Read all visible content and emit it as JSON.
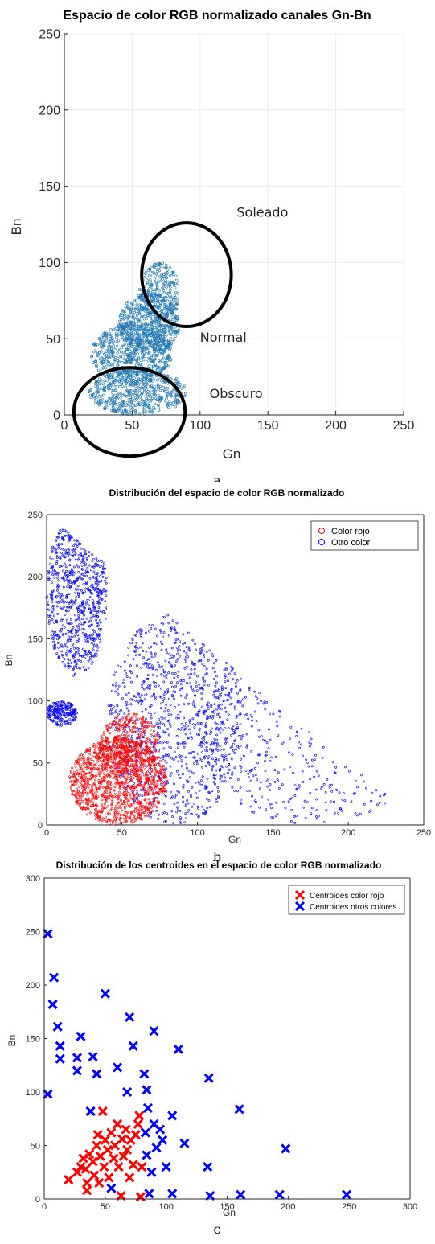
{
  "chart_data": [
    {
      "type": "scatter",
      "title": "Espacio de color RGB normalizado canales Gn-Bn",
      "xlabel": "Gn",
      "ylabel": "Bn",
      "xlim": [
        0,
        250
      ],
      "ylim": [
        0,
        250
      ],
      "x_ticks": [
        "0",
        "50",
        "100",
        "150",
        "200",
        "250"
      ],
      "y_ticks": [
        "0",
        "50",
        "100",
        "150",
        "200",
        "250"
      ],
      "grid": true,
      "color": "#1f77b4",
      "series": [
        {
          "regions": [
            {
              "x": [
                18,
                90
              ],
              "y": [
                0,
                30
              ],
              "weight": 4
            },
            {
              "x": [
                20,
                80
              ],
              "y": [
                20,
                60
              ],
              "weight": 5
            },
            {
              "x": [
                40,
                85
              ],
              "y": [
                40,
                80
              ],
              "weight": 4
            },
            {
              "x": [
                55,
                85
              ],
              "y": [
                60,
                100
              ],
              "weight": 2
            }
          ]
        }
      ],
      "annotations": [
        {
          "text": "Soleado",
          "x": 127,
          "y": 130
        },
        {
          "text": "Normal",
          "x": 100,
          "y": 48
        },
        {
          "text": "Obscuro",
          "x": 107,
          "y": 11
        }
      ],
      "circles": [
        {
          "cx": 90,
          "cy": 92,
          "rx": 33,
          "ry": 34
        },
        {
          "cx": 48,
          "cy": 2,
          "rx": 41,
          "ry": 29
        }
      ],
      "caption": "a"
    },
    {
      "type": "scatter",
      "title": "Distribución del espacio de color RGB normalizado",
      "xlabel": "Gn",
      "ylabel": "Bn",
      "xlim": [
        0,
        250
      ],
      "ylim": [
        0,
        250
      ],
      "x_ticks": [
        "0",
        "50",
        "100",
        "150",
        "200",
        "250"
      ],
      "y_ticks": [
        "0",
        "50",
        "100",
        "150",
        "200",
        "250"
      ],
      "grid": false,
      "legend": "top-right",
      "series": [
        {
          "name": "Color rojo",
          "color": "#ff0000",
          "regions": [
            {
              "x": [
                15,
                80
              ],
              "y": [
                0,
                70
              ],
              "weight": 6
            },
            {
              "x": [
                35,
                75
              ],
              "y": [
                40,
                90
              ],
              "weight": 2
            }
          ]
        },
        {
          "name": "Otro color",
          "color": "#0000ff",
          "regions": [
            {
              "x": [
                0,
                40
              ],
              "y": [
                120,
                250
              ],
              "weight": 4
            },
            {
              "x": [
                40,
                130
              ],
              "y": [
                0,
                170
              ],
              "weight": 5
            },
            {
              "x": [
                100,
                250
              ],
              "y": [
                0,
                140
              ],
              "weight": 3
            },
            {
              "x": [
                0,
                20
              ],
              "y": [
                80,
                100
              ],
              "weight": 1
            }
          ]
        }
      ],
      "caption": "b"
    },
    {
      "type": "scatter",
      "title": "Distribución de los centroides en el espacio de color RGB normalizado",
      "xlabel": "Gn",
      "ylabel": "Bn",
      "xlim": [
        0,
        300
      ],
      "ylim": [
        0,
        300
      ],
      "x_ticks": [
        "0",
        "50",
        "100",
        "150",
        "200",
        "250",
        "300"
      ],
      "y_ticks": [
        "0",
        "50",
        "100",
        "150",
        "200",
        "250",
        "300"
      ],
      "grid": false,
      "legend": "top-right",
      "series": [
        {
          "name": "Centroides color rojo",
          "color": "#ff0000",
          "points": [
            [
              20,
              18
            ],
            [
              27,
              25
            ],
            [
              30,
              30
            ],
            [
              32,
              38
            ],
            [
              34,
              28
            ],
            [
              35,
              15
            ],
            [
              35,
              8
            ],
            [
              37,
              42
            ],
            [
              40,
              35
            ],
            [
              41,
              22
            ],
            [
              43,
              50
            ],
            [
              44,
              60
            ],
            [
              45,
              15
            ],
            [
              46,
              40
            ],
            [
              48,
              82
            ],
            [
              49,
              30
            ],
            [
              50,
              55
            ],
            [
              52,
              46
            ],
            [
              53,
              20
            ],
            [
              55,
              62
            ],
            [
              57,
              38
            ],
            [
              58,
              50
            ],
            [
              60,
              70
            ],
            [
              61,
              30
            ],
            [
              63,
              3
            ],
            [
              64,
              56
            ],
            [
              65,
              40
            ],
            [
              67,
              65
            ],
            [
              68,
              46
            ],
            [
              70,
              20
            ],
            [
              71,
              55
            ],
            [
              73,
              32
            ],
            [
              75,
              60
            ],
            [
              77,
              70
            ],
            [
              78,
              78
            ],
            [
              80,
              30
            ],
            [
              79,
              2
            ]
          ]
        },
        {
          "name": "Centroides otros colores",
          "color": "#0000ff",
          "points": [
            [
              3,
              248
            ],
            [
              3,
              98
            ],
            [
              7,
              182
            ],
            [
              8,
              207
            ],
            [
              11,
              161
            ],
            [
              13,
              143
            ],
            [
              13,
              131
            ],
            [
              27,
              132
            ],
            [
              27,
              120
            ],
            [
              30,
              152
            ],
            [
              38,
              82
            ],
            [
              40,
              133
            ],
            [
              43,
              117
            ],
            [
              50,
              192
            ],
            [
              55,
              10
            ],
            [
              60,
              123
            ],
            [
              68,
              100
            ],
            [
              70,
              170
            ],
            [
              73,
              143
            ],
            [
              82,
              117
            ],
            [
              84,
              102
            ],
            [
              83,
              62
            ],
            [
              84,
              41
            ],
            [
              85,
              85
            ],
            [
              86,
              5
            ],
            [
              88,
              25
            ],
            [
              90,
              157
            ],
            [
              90,
              70
            ],
            [
              92,
              48
            ],
            [
              95,
              65
            ],
            [
              97,
              55
            ],
            [
              100,
              30
            ],
            [
              105,
              78
            ],
            [
              105,
              5
            ],
            [
              110,
              140
            ],
            [
              115,
              52
            ],
            [
              134,
              30
            ],
            [
              135,
              113
            ],
            [
              136,
              3
            ],
            [
              160,
              84
            ],
            [
              161,
              4
            ],
            [
              193,
              4
            ],
            [
              198,
              47
            ],
            [
              248,
              4
            ]
          ]
        }
      ],
      "caption": "c"
    }
  ]
}
